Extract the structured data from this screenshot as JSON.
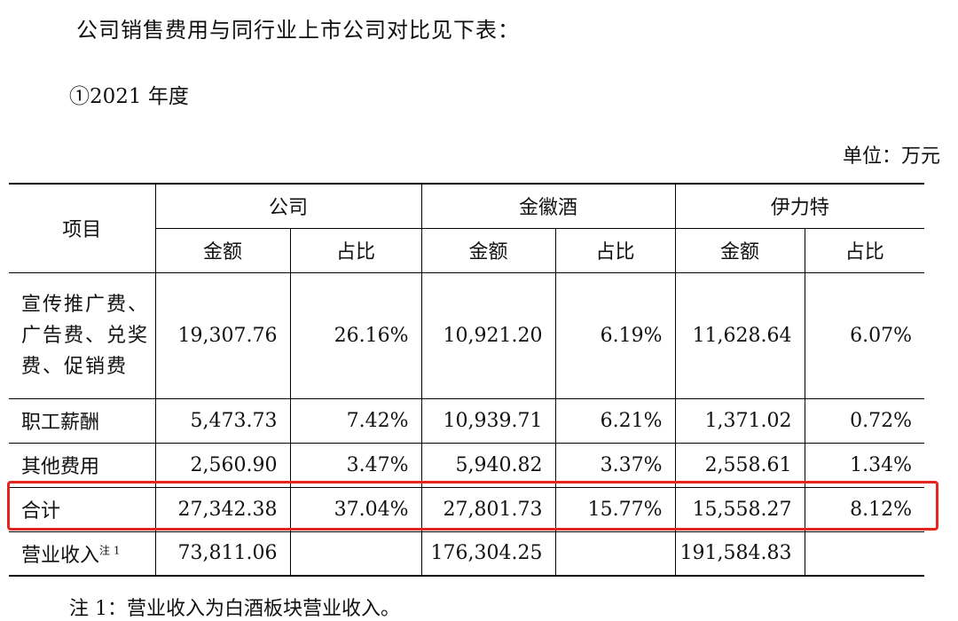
{
  "intro": "公司销售费用与同行业上市公司对比见下表：",
  "subtitle": "①2021 年度",
  "unit": "单位：万元",
  "table": {
    "item_header": "项目",
    "groups": [
      "公司",
      "金徽酒",
      "伊力特"
    ],
    "amount": "金额",
    "ratio": "占比",
    "rows": [
      {
        "item": "宣传推广费、广告费、兑奖费、促销费",
        "vals": [
          "19,307.76",
          "26.16%",
          "10,921.20",
          "6.19%",
          "11,628.64",
          "6.07%"
        ]
      },
      {
        "item": "职工薪酬",
        "vals": [
          "5,473.73",
          "7.42%",
          "10,939.71",
          "6.21%",
          "1,371.02",
          "0.72%"
        ]
      },
      {
        "item": "其他费用",
        "vals": [
          "2,560.90",
          "3.47%",
          "5,940.82",
          "3.37%",
          "2,558.61",
          "1.34%"
        ]
      },
      {
        "item": "合计",
        "vals": [
          "27,342.38",
          "37.04%",
          "27,801.73",
          "15.77%",
          "15,558.27",
          "8.12%"
        ]
      }
    ],
    "revenue": {
      "item": "营业收入",
      "sup": "注 1",
      "vals": [
        "73,811.06",
        "",
        "176,304.25",
        "",
        "191,584.83",
        ""
      ]
    }
  },
  "note": "注 1：营业收入为白酒板块营业收入。",
  "highlight_color": "#e5261f"
}
